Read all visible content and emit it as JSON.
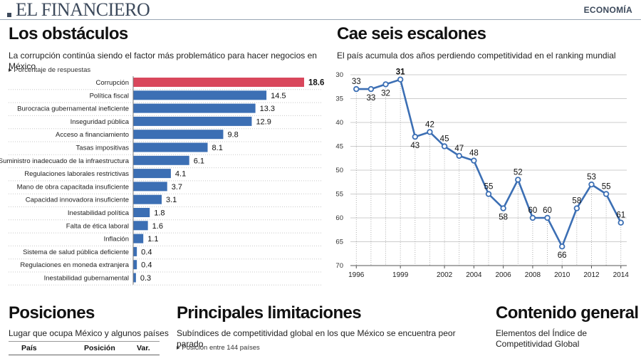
{
  "masthead": {
    "brand": "EL FINANCIERO",
    "section": "ECONOMÍA"
  },
  "left_panel": {
    "title": "Los obstáculos",
    "subtitle": "La corrupción continúa siendo el factor más problemático para hacer negocios en México",
    "note": "Porcentaje de respuestas"
  },
  "right_panel": {
    "title": "Cae seis escalones",
    "subtitle": "El país acumula dos años perdiendo competitividad en el ranking mundial"
  },
  "bottom": {
    "posiciones": {
      "title": "Posiciones",
      "subtitle": "Lugar que ocupa México y algunos países",
      "columns": [
        "País",
        "Posición",
        "Var."
      ]
    },
    "limitaciones": {
      "title": "Principales limitaciones",
      "subtitle": "Subíndices de competitividad global en los que México se encuentra peor parado",
      "note": "Posición entre 144 países"
    },
    "contenido": {
      "title": "Contenido general",
      "subtitle": "Elementos del Índice de Competitividad Global"
    }
  },
  "chart_data": [
    {
      "type": "bar",
      "orientation": "horizontal",
      "categories": [
        "Corrupción",
        "Política fiscal",
        "Burocracia gubernamental ineficiente",
        "Inseguridad pública",
        "Acceso a financiamiento",
        "Tasas impositivas",
        "Suministro inadecuado de la infraestructura",
        "Regulaciones laborales restrictivas",
        "Mano de obra capacitada insuficiente",
        "Capacidad innovadora insuficiente",
        "Inestabilidad política",
        "Falta de ética laboral",
        "Inflación",
        "Sistema de salud pública deficiente",
        "Regulaciones en moneda extranjera",
        "Inestabilidad gubernamental"
      ],
      "values": [
        18.6,
        14.5,
        13.3,
        12.9,
        9.8,
        8.1,
        6.1,
        4.1,
        3.7,
        3.1,
        1.8,
        1.6,
        1.1,
        0.4,
        0.4,
        0.3
      ],
      "value_labels": [
        "18.6",
        "14.5",
        "13.3",
        "12.9",
        "9.8",
        "8.1",
        "6.1",
        "4.1",
        "3.7",
        "3.1",
        "1.8",
        "1.6",
        "1.1",
        "0.4",
        "0.4",
        "0.3"
      ],
      "highlight_index": 0,
      "xlim": [
        0,
        20
      ],
      "colors": {
        "highlight": "#d9475c",
        "bar": "#3c6fb4"
      }
    },
    {
      "type": "line",
      "x": [
        1996,
        1997,
        1998,
        1999,
        2000,
        2001,
        2002,
        2003,
        2004,
        2005,
        2006,
        2007,
        2008,
        2009,
        2010,
        2011,
        2012,
        2013,
        2014
      ],
      "values": [
        33,
        33,
        32,
        31,
        43,
        42,
        45,
        47,
        48,
        55,
        58,
        52,
        60,
        60,
        66,
        58,
        53,
        55,
        61
      ],
      "point_labels": [
        "33",
        "33",
        "32",
        "31",
        "43",
        "42",
        "45",
        "47",
        "48",
        "55",
        "58",
        "52",
        "60",
        "60",
        "66",
        "58",
        "53",
        "55",
        "61"
      ],
      "label_position": [
        "above",
        "below",
        "below",
        "above",
        "below",
        "above",
        "above",
        "above",
        "above",
        "above",
        "below",
        "above",
        "above",
        "above",
        "below",
        "above",
        "above",
        "above",
        "above"
      ],
      "bold_label_index": 3,
      "x_tick_labels": [
        "1996",
        "1999",
        "2002",
        "2004",
        "2006",
        "2008",
        "2010",
        "2012",
        "2014"
      ],
      "x_tick_values": [
        1996,
        1999,
        2002,
        2004,
        2006,
        2008,
        2010,
        2012,
        2014
      ],
      "y_tick_labels": [
        "30",
        "35",
        "40",
        "45",
        "50",
        "55",
        "60",
        "65",
        "70"
      ],
      "y_tick_values": [
        30,
        35,
        40,
        45,
        50,
        55,
        60,
        65,
        70
      ],
      "ylim": [
        30,
        70
      ],
      "y_inverted": true,
      "xlim": [
        1995.6,
        2014.4
      ],
      "colors": {
        "line": "#3c6fb4",
        "marker_fill": "#ffffff",
        "grid": "#cccccc"
      }
    }
  ]
}
